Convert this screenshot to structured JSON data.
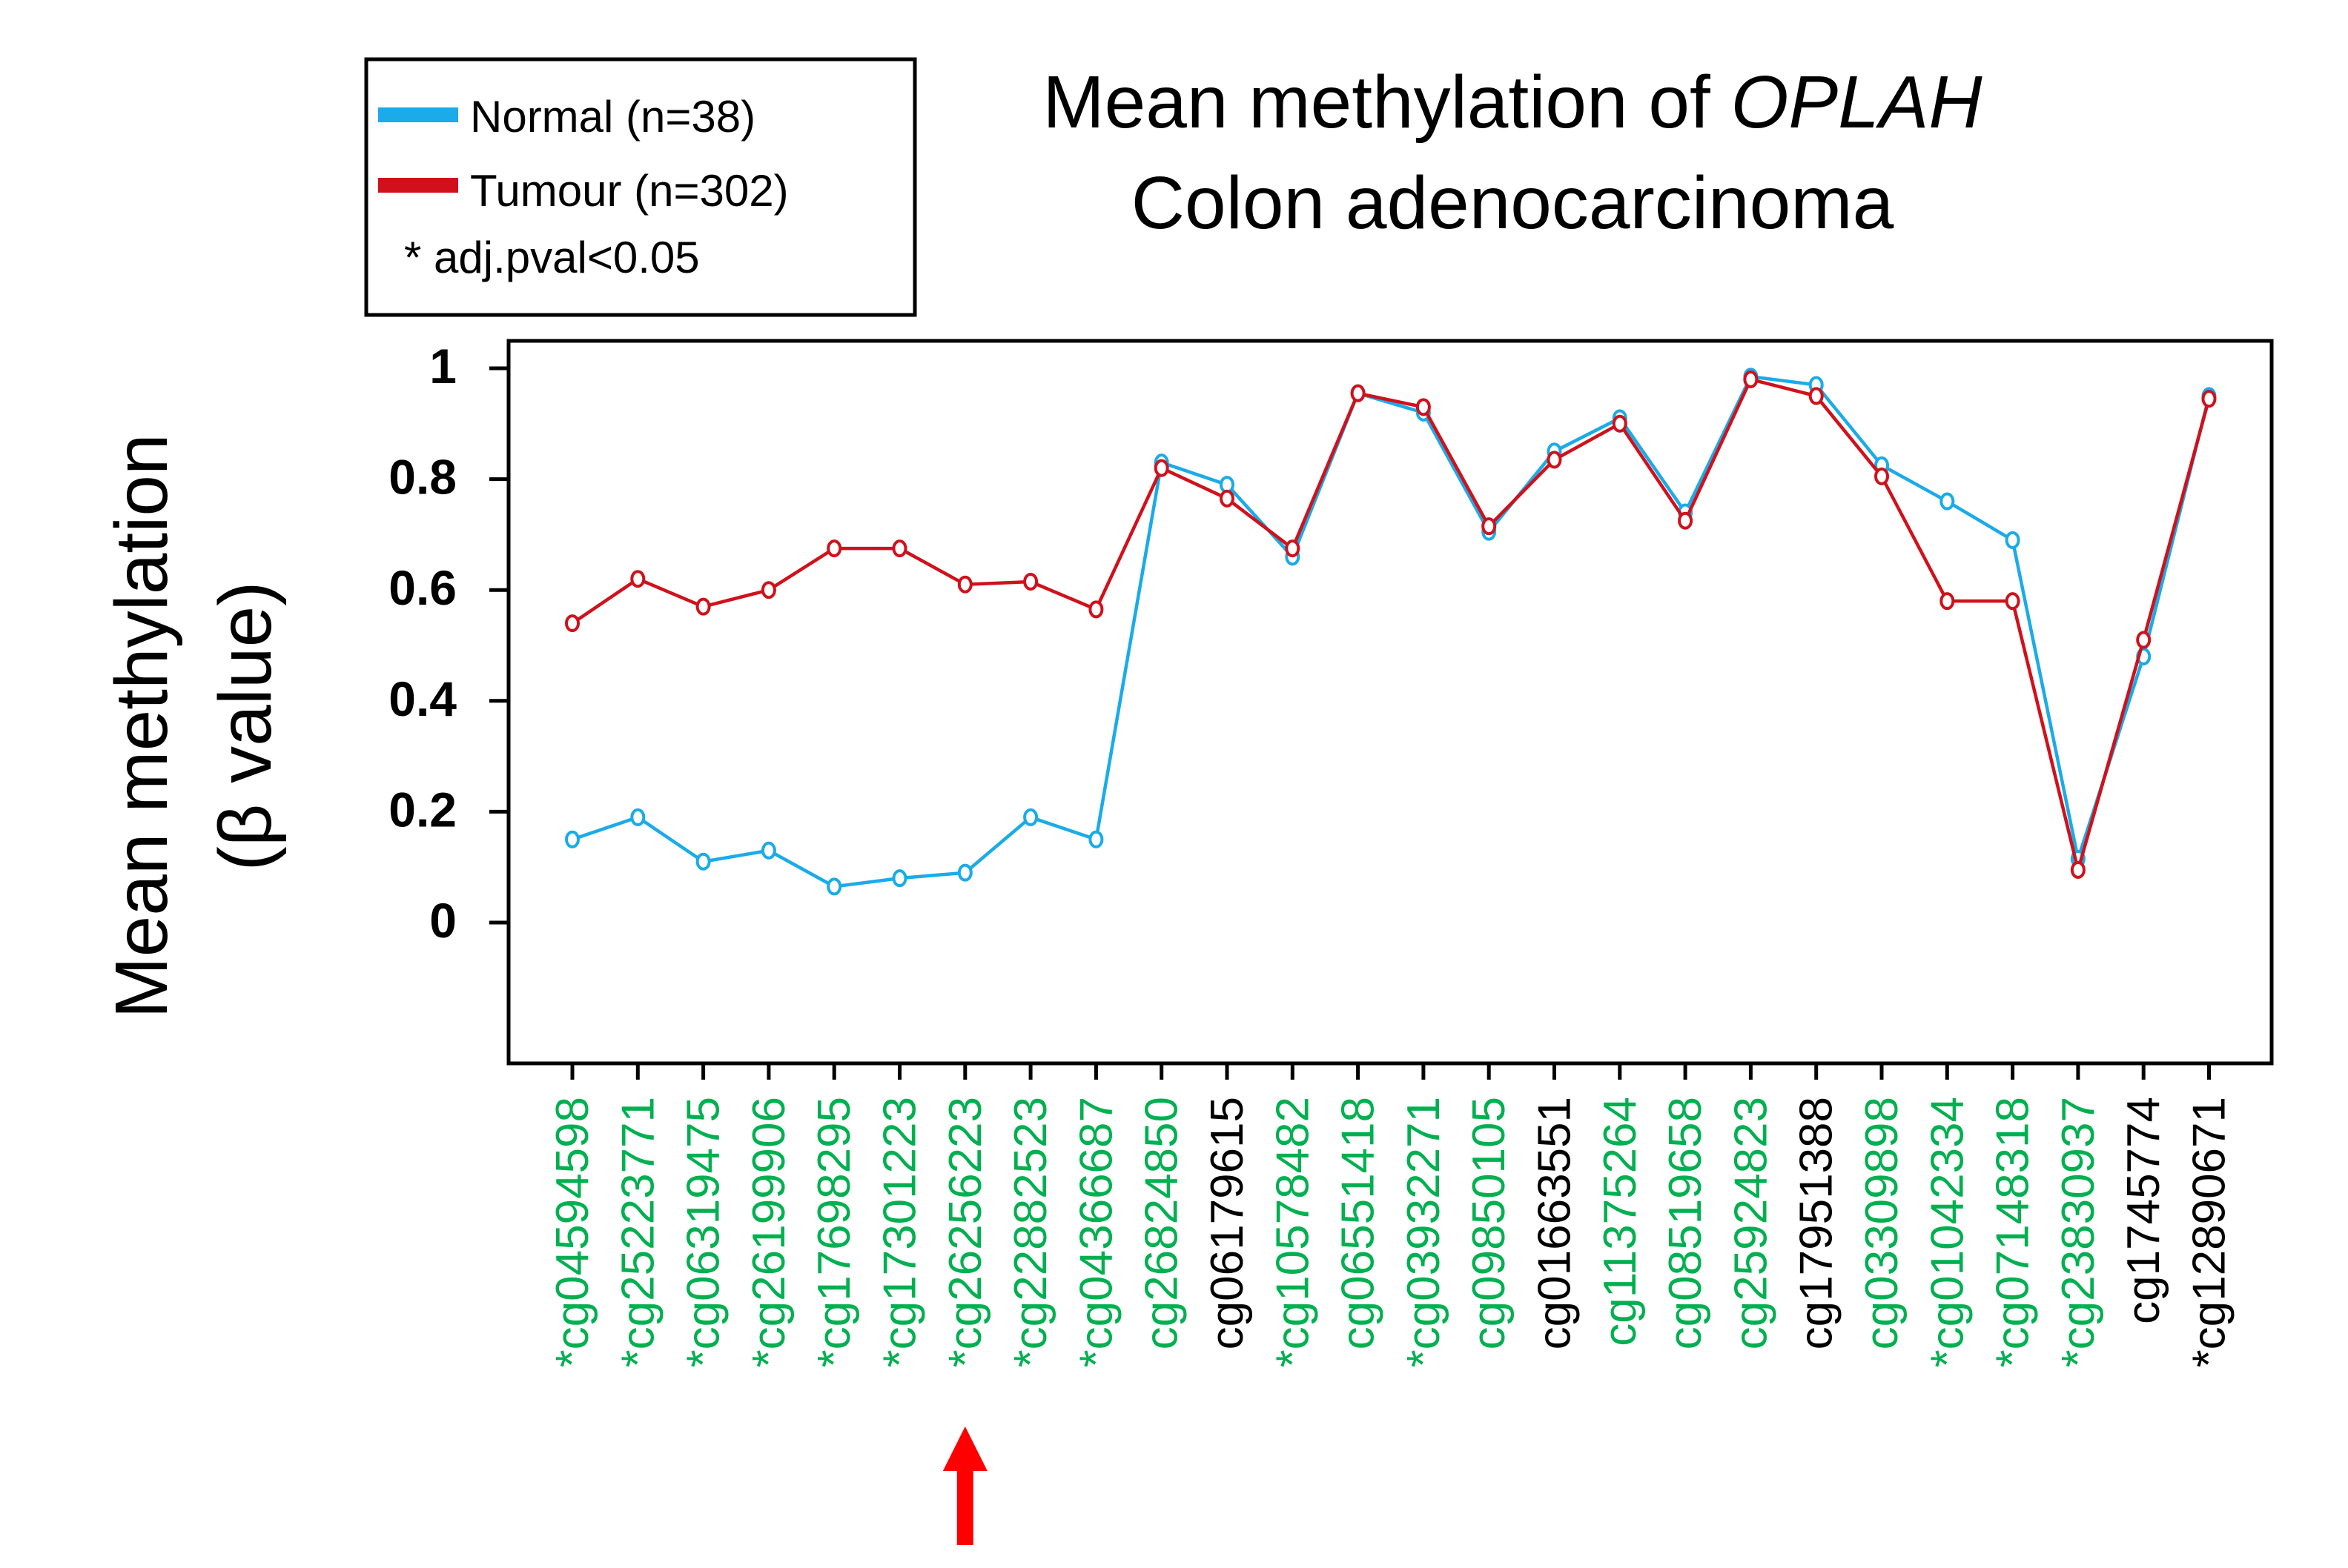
{
  "chart_data": {
    "type": "line",
    "title": {
      "line1_prefix": "Mean methylation of ",
      "line1_gene": "OPLAH",
      "line2": "Colon adenocarcinoma"
    },
    "ylabel": {
      "line1": "Mean methylation",
      "line2": "(β value)"
    },
    "xlabel": "",
    "ylim": [
      -0.25,
      1.05
    ],
    "yticks": [
      0,
      0.2,
      0.4,
      0.6,
      0.8,
      1
    ],
    "ytick_labels": [
      "0",
      "0.2",
      "0.4",
      "0.6",
      "0.8",
      "1"
    ],
    "grid": false,
    "legend": {
      "position": "top-left",
      "entries": [
        {
          "label": "Normal (n=38)",
          "color": "#1AABE8"
        },
        {
          "label": "Tumour (n=302)",
          "color": "#D0111B"
        }
      ],
      "note": "* adj.pval<0.05"
    },
    "categories": [
      "cg04594598",
      "cg25223771",
      "cg06319475",
      "cg26199906",
      "cg17698295",
      "cg17301223",
      "cg26256223",
      "cg22882523",
      "cg04366687",
      "cg26824850",
      "cg06179615",
      "cg10578482",
      "cg06551418",
      "cg03932271",
      "cg09850105",
      "cg01663551",
      "cg11375264",
      "cg08519658",
      "cg25924823",
      "cg17951388",
      "cg03309898",
      "cg01042334",
      "cg07148318",
      "cg23830937",
      "cg1745774",
      "cg12890671"
    ],
    "category_labels": [
      "*cg04594598",
      "*cg25223771",
      "*cg06319475",
      "*cg26199906",
      "*cg17698295",
      "*cg17301223",
      "*cg26256223",
      "*cg22882523",
      "*cg04366687",
      "cg26824850",
      "cg06179615",
      "*cg10578482",
      "cg06551418",
      "*cg03932271",
      "cg09850105",
      "cg01663551",
      "cg11375264",
      "cg08519658",
      "cg25924823",
      "cg17951388",
      "cg03309898",
      "*cg01042334",
      "*cg07148318",
      "*cg23830937",
      "cg1745774",
      "*cg12890671"
    ],
    "label_colors": [
      "#00B050",
      "#00B050",
      "#00B050",
      "#00B050",
      "#00B050",
      "#00B050",
      "#00B050",
      "#00B050",
      "#00B050",
      "#00B050",
      "#000000",
      "#00B050",
      "#00B050",
      "#00B050",
      "#00B050",
      "#000000",
      "#00B050",
      "#00B050",
      "#00B050",
      "#000000",
      "#00B050",
      "#00B050",
      "#00B050",
      "#00B050",
      "#000000",
      "#000000"
    ],
    "series": [
      {
        "name": "Normal (n=38)",
        "color": "#1AABE8",
        "values": [
          0.15,
          0.19,
          0.11,
          0.13,
          0.065,
          0.08,
          0.09,
          0.19,
          0.15,
          0.83,
          0.79,
          0.66,
          0.955,
          0.92,
          0.705,
          0.85,
          0.91,
          0.74,
          0.985,
          0.97,
          0.825,
          0.76,
          0.69,
          0.115,
          0.48,
          0.95
        ]
      },
      {
        "name": "Tumour (n=302)",
        "color": "#D0111B",
        "values": [
          0.54,
          0.62,
          0.57,
          0.6,
          0.675,
          0.675,
          0.61,
          0.615,
          0.565,
          0.82,
          0.765,
          0.675,
          0.955,
          0.93,
          0.715,
          0.835,
          0.9,
          0.725,
          0.98,
          0.95,
          0.805,
          0.58,
          0.58,
          0.095,
          0.51,
          0.945
        ]
      }
    ],
    "annotation": {
      "type": "arrow",
      "target_category": "cg26256223",
      "color": "#FF0000"
    }
  }
}
